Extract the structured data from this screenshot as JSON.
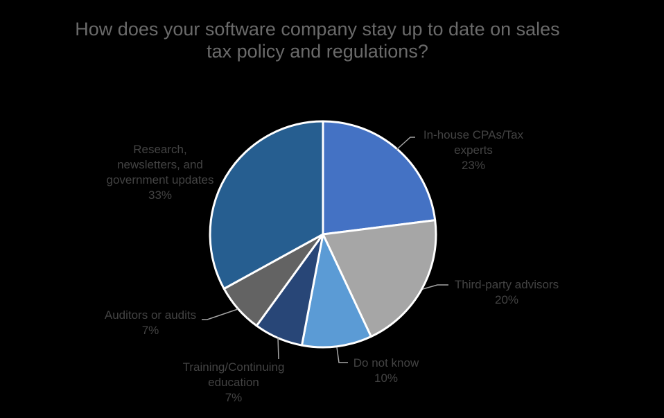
{
  "chart_title": "How does your software company stay up to date on sales tax policy and regulations?",
  "colors": {
    "background": "#000000",
    "title_text": "#6a6a6a",
    "label_text": "#434343",
    "leader_line": "#A6A6A6",
    "slice_border": "#FFFFFF"
  },
  "chart_data": {
    "type": "pie",
    "title": "How does your software company stay up to date on sales tax policy and regulations?",
    "legend_position": "none",
    "start_angle_deg": 0,
    "direction": "clockwise",
    "data_labels": "outside, category name + percent, with leader lines",
    "slices": [
      {
        "label": "In-house CPAs/Tax experts",
        "value": 23,
        "pct_label": "23%",
        "color": "#4472C4"
      },
      {
        "label": "Third-party advisors",
        "value": 20,
        "pct_label": "20%",
        "color": "#A6A6A6"
      },
      {
        "label": "Do not know",
        "value": 10,
        "pct_label": "10%",
        "color": "#5B9BD5"
      },
      {
        "label": "Training/Continuing education",
        "value": 7,
        "pct_label": "7%",
        "color": "#284677"
      },
      {
        "label": "Auditors or audits",
        "value": 7,
        "pct_label": "7%",
        "color": "#636363"
      },
      {
        "label": "Research, newsletters, and government updates",
        "value": 33,
        "pct_label": "33%",
        "color": "#265E90"
      }
    ]
  },
  "callouts": [
    {
      "text": "In-house CPAs/Tax\nexperts\n23%"
    },
    {
      "text": "Third-party advisors\n20%"
    },
    {
      "text": "Do not know\n10%"
    },
    {
      "text": "Training/Continuing\neducation\n7%"
    },
    {
      "text": "Auditors or audits\n7%"
    },
    {
      "text": "Research,\nnewsletters, and\ngovernment updates\n33%"
    }
  ]
}
